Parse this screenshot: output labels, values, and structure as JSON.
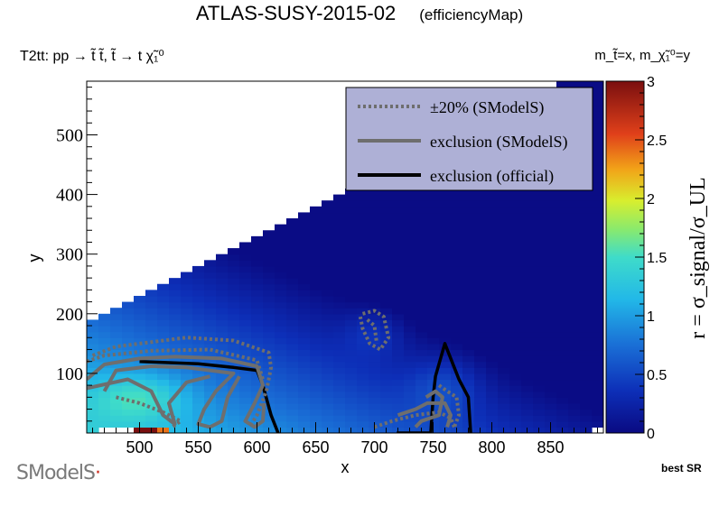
{
  "page": {
    "title": "ATLAS-SUSY-2015-02",
    "subtitle": "(efficiencyMap)",
    "process_label": "T2tt: pp → t̃ t̃, t̃ → t χ̃₁⁰",
    "mass_label": "m_t̃=x, m_χ̃₁⁰=y",
    "best_sr_label": "best SR",
    "logo_text": "SModelS"
  },
  "chart_data": {
    "type": "heatmap",
    "title": "ATLAS-SUSY-2015-02 (efficiencyMap)",
    "xlabel": "x",
    "ylabel": "y",
    "zlabel": "r = σ_signal/σ_UL",
    "xlim": [
      455,
      895
    ],
    "ylim": [
      0,
      590
    ],
    "zlim": [
      0,
      3
    ],
    "x_ticks": [
      500,
      550,
      600,
      650,
      700,
      750,
      800,
      850
    ],
    "y_ticks": [
      100,
      200,
      300,
      400,
      500
    ],
    "z_ticks": [
      0,
      0.5,
      1,
      1.5,
      2,
      2.5,
      3
    ],
    "grid": false,
    "legend_placement": "top-right",
    "legend": [
      {
        "label": "±20% (SModelS)",
        "style": "dotted",
        "color": "#6e6e6e"
      },
      {
        "label": "exclusion (SModelS)",
        "style": "solid",
        "color": "#6e6e6e"
      },
      {
        "label": "exclusion (official)",
        "style": "solid",
        "color": "#000000"
      }
    ],
    "colorscale": [
      [
        0.0,
        "#0a0a82"
      ],
      [
        0.12,
        "#0d2fb8"
      ],
      [
        0.25,
        "#1a6fd6"
      ],
      [
        0.38,
        "#22b8e8"
      ],
      [
        0.5,
        "#3fdcc9"
      ],
      [
        0.58,
        "#8aea6c"
      ],
      [
        0.66,
        "#d8ee2e"
      ],
      [
        0.75,
        "#f2a318"
      ],
      [
        0.85,
        "#e0401a"
      ],
      [
        1.0,
        "#7a0f0f"
      ]
    ],
    "heatmap_value_examples": [
      {
        "x": 460,
        "y": 60,
        "r": 1.35
      },
      {
        "x": 520,
        "y": 80,
        "r": 1.3
      },
      {
        "x": 600,
        "y": 100,
        "r": 1.0
      },
      {
        "x": 700,
        "y": 150,
        "r": 0.75
      },
      {
        "x": 760,
        "y": 120,
        "r": 0.85
      },
      {
        "x": 800,
        "y": 300,
        "r": 0.3
      },
      {
        "x": 850,
        "y": 500,
        "r": 0.05
      },
      {
        "x": 505,
        "y": 5,
        "r": 3.0
      },
      {
        "x": 520,
        "y": 5,
        "r": 2.4
      },
      {
        "x": 535,
        "y": 5,
        "r": 1.9
      }
    ],
    "series": [
      {
        "name": "exclusion (official)",
        "style": "solid",
        "color": "#000000",
        "segments": [
          [
            [
              500,
              120
            ],
            [
              550,
              116
            ],
            [
              580,
              110
            ],
            [
              600,
              105
            ],
            [
              605,
              80
            ],
            [
              612,
              30
            ],
            [
              618,
              0
            ]
          ],
          [
            [
              719,
              0
            ],
            [
              748,
              0
            ],
            [
              750,
              60
            ],
            [
              752,
              95
            ],
            [
              760,
              150
            ],
            [
              766,
              120
            ],
            [
              772,
              90
            ],
            [
              780,
              60
            ],
            [
              782,
              0
            ]
          ]
        ]
      },
      {
        "name": "exclusion (SModelS)",
        "style": "solid",
        "color": "#6e6e6e",
        "segments": [
          [
            [
              455,
              90
            ],
            [
              470,
              115
            ],
            [
              500,
              125
            ],
            [
              530,
              128
            ],
            [
              570,
              125
            ],
            [
              600,
              112
            ],
            [
              605,
              80
            ],
            [
              598,
              50
            ],
            [
              590,
              20
            ],
            [
              598,
              10
            ],
            [
              605,
              20
            ],
            [
              606,
              50
            ]
          ],
          [
            [
              470,
              70
            ],
            [
              480,
              105
            ],
            [
              510,
              112
            ],
            [
              540,
              110
            ],
            [
              580,
              100
            ],
            [
              565,
              70
            ],
            [
              555,
              40
            ],
            [
              550,
              15
            ],
            [
              560,
              10
            ],
            [
              570,
              20
            ],
            [
              575,
              60
            ],
            [
              585,
              95
            ]
          ],
          [
            [
              455,
              75
            ],
            [
              490,
              90
            ],
            [
              510,
              70
            ],
            [
              520,
              30
            ],
            [
              530,
              15
            ],
            [
              525,
              50
            ],
            [
              540,
              85
            ],
            [
              560,
              95
            ]
          ],
          [
            [
              720,
              30
            ],
            [
              735,
              40
            ],
            [
              745,
              50
            ],
            [
              760,
              50
            ],
            [
              765,
              30
            ],
            [
              762,
              10
            ]
          ],
          [
            [
              735,
              10
            ],
            [
              740,
              20
            ],
            [
              755,
              30
            ],
            [
              758,
              60
            ],
            [
              752,
              70
            ],
            [
              744,
              60
            ]
          ]
        ]
      },
      {
        "name": "±20% (SModelS)",
        "style": "dotted",
        "color": "#6e6e6e",
        "segments": [
          [
            [
              460,
              130
            ],
            [
              480,
              145
            ],
            [
              540,
              160
            ],
            [
              580,
              155
            ],
            [
              610,
              135
            ],
            [
              612,
              110
            ],
            [
              608,
              70
            ],
            [
              600,
              30
            ],
            [
              595,
              15
            ]
          ],
          [
            [
              455,
              120
            ],
            [
              470,
              130
            ],
            [
              510,
              138
            ],
            [
              560,
              140
            ],
            [
              600,
              122
            ],
            [
              605,
              90
            ]
          ],
          [
            [
              690,
              200
            ],
            [
              700,
              205
            ],
            [
              708,
              195
            ],
            [
              712,
              160
            ],
            [
              705,
              140
            ],
            [
              696,
              150
            ],
            [
              690,
              175
            ],
            [
              688,
              195
            ]
          ],
          [
            [
              694,
              190
            ],
            [
              700,
              180
            ],
            [
              702,
              150
            ]
          ],
          [
            [
              700,
              10
            ],
            [
              715,
              20
            ],
            [
              735,
              30
            ],
            [
              755,
              35
            ],
            [
              765,
              25
            ],
            [
              768,
              10
            ]
          ],
          [
            [
              755,
              80
            ],
            [
              762,
              70
            ],
            [
              770,
              60
            ],
            [
              772,
              30
            ],
            [
              768,
              10
            ]
          ],
          [
            [
              480,
              60
            ],
            [
              500,
              50
            ],
            [
              520,
              35
            ],
            [
              535,
              20
            ],
            [
              528,
              10
            ]
          ]
        ]
      }
    ]
  }
}
